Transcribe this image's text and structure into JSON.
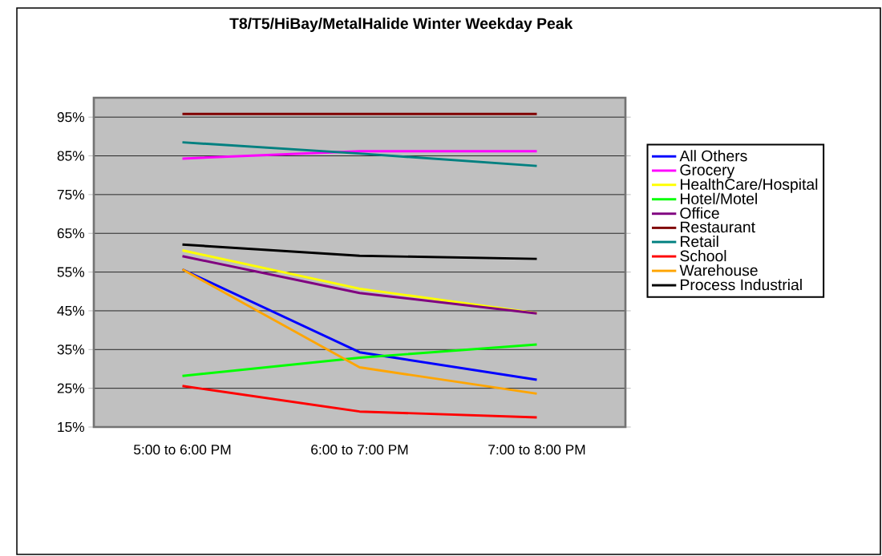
{
  "chart_data": {
    "type": "line",
    "title": "T8/T5/HiBay/MetalHalide Winter Weekday Peak",
    "categories": [
      "5:00 to 6:00 PM",
      "6:00 to 7:00 PM",
      "7:00 to 8:00 PM"
    ],
    "series": [
      {
        "name": "All Others",
        "color": "#0000ff",
        "values": [
          55.7,
          34.3,
          27.2
        ]
      },
      {
        "name": "Grocery",
        "color": "#ff00ff",
        "values": [
          84.3,
          86.2,
          86.2
        ]
      },
      {
        "name": "HealthCare/Hospital",
        "color": "#ffff00",
        "values": [
          60.6,
          50.7,
          44.4
        ]
      },
      {
        "name": "Hotel/Motel",
        "color": "#00ff00",
        "values": [
          28.2,
          32.9,
          36.3
        ]
      },
      {
        "name": "Office",
        "color": "#800080",
        "values": [
          59.1,
          49.6,
          44.3
        ]
      },
      {
        "name": "Restaurant",
        "color": "#800000",
        "values": [
          95.8,
          95.8,
          95.8
        ]
      },
      {
        "name": "Retail",
        "color": "#008080",
        "values": [
          88.5,
          85.6,
          82.4
        ]
      },
      {
        "name": "School",
        "color": "#ff0000",
        "values": [
          25.6,
          19.0,
          17.5
        ]
      },
      {
        "name": "Warehouse",
        "color": "#ffa500",
        "values": [
          55.7,
          30.4,
          23.6
        ]
      },
      {
        "name": "Process Industrial",
        "color": "#000000",
        "values": [
          62.1,
          59.2,
          58.4
        ]
      }
    ],
    "ylim": [
      15,
      100
    ],
    "yticks": [
      {
        "value": 15,
        "label": "15%"
      },
      {
        "value": 25,
        "label": "25%"
      },
      {
        "value": 35,
        "label": "35%"
      },
      {
        "value": 45,
        "label": "45%"
      },
      {
        "value": 55,
        "label": "55%"
      },
      {
        "value": 65,
        "label": "65%"
      },
      {
        "value": 75,
        "label": "75%"
      },
      {
        "value": 85,
        "label": "85%"
      },
      {
        "value": 95,
        "label": "95%"
      }
    ],
    "grid": "y",
    "legend": "right",
    "line_style": "solid"
  }
}
